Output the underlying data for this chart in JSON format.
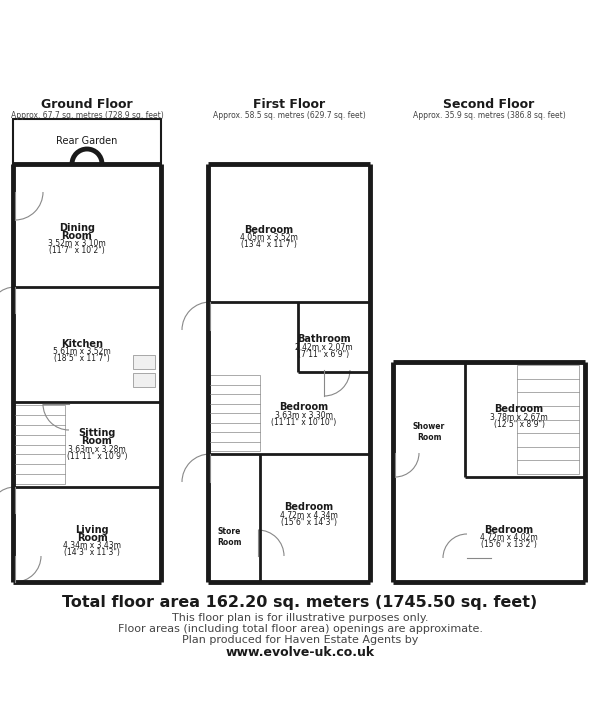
{
  "bg_color": "#ffffff",
  "wall_color": "#1a1a1a",
  "light_gray": "#aaaaaa",
  "medium_gray": "#888888",
  "text_dark": "#1a1a1a",
  "text_med": "#444444",
  "footer_line1": "Total floor area 162.20 sq. meters (1745.50 sq. feet)",
  "footer_line2": "This floor plan is for illustrative purposes only.",
  "footer_line3": "Floor areas (including total floor area) openings are approximate.",
  "footer_line4": "Plan produced for Haven Estate Agents by",
  "footer_line5": "www.evolve-uk.co.uk",
  "gf_label": "Ground Floor",
  "gf_sub": "Approx. 67.7 sq. metres (728.9 sq. feet)",
  "ff_label": "First Floor",
  "ff_sub": "Approx. 58.5 sq. metres (629.7 sq. feet)",
  "sf_label": "Second Floor",
  "sf_sub": "Approx. 35.9 sq. metres (386.8 sq. feet)",
  "rear_garden": "Rear Garden",
  "room_dining": "Dining\nRoom",
  "room_dining_dim1": "3.52m x 3.10m",
  "room_dining_dim2": "(11’7\" x 10’2\")",
  "room_kitchen": "Kitchen",
  "room_kitchen_dim1": "5.61m x 3.52m",
  "room_kitchen_dim2": "(18’5\" x 11’7\")",
  "room_sitting": "Sitting\nRoom",
  "room_sitting_dim1": "3.63m x 3.28m",
  "room_sitting_dim2": "(11’11\" x 10’9\")",
  "room_living": "Living\nRoom",
  "room_living_dim1": "4.34m x 3.43m",
  "room_living_dim2": "(14’3\" x 11’3\")",
  "room_ff_bed1": "Bedroom",
  "room_ff_bed1_dim1": "4.05m x 3.52m",
  "room_ff_bed1_dim2": "(13’4\" x 11’7\")",
  "room_ff_bath": "Bathroom",
  "room_ff_bath_dim1": "2.42m x 2.07m",
  "room_ff_bath_dim2": "(7’11\" x 6’9\")",
  "room_ff_bed2": "Bedroom",
  "room_ff_bed2_dim1": "3.63m x 3.30m",
  "room_ff_bed2_dim2": "(11’11\" x 10’10\")",
  "room_ff_bed3": "Bedroom",
  "room_ff_bed3_dim1": "4.72m x 4.34m",
  "room_ff_bed3_dim2": "(15’6\" x 14’3\")",
  "room_ff_store": "Store\nRoom",
  "room_ff_store_dim1": "...",
  "room_sf_bed1": "Bedroom",
  "room_sf_bed1_dim1": "3.78m x 2.67m",
  "room_sf_bed1_dim2": "(12’5\" x 8’9\")",
  "room_sf_shower": "Shower\nRoom",
  "room_sf_bed2": "Bedroom",
  "room_sf_bed2_dim1": "4.72m x 4.02m",
  "room_sf_bed2_dim2": "(15’6\" x 13’2\")"
}
